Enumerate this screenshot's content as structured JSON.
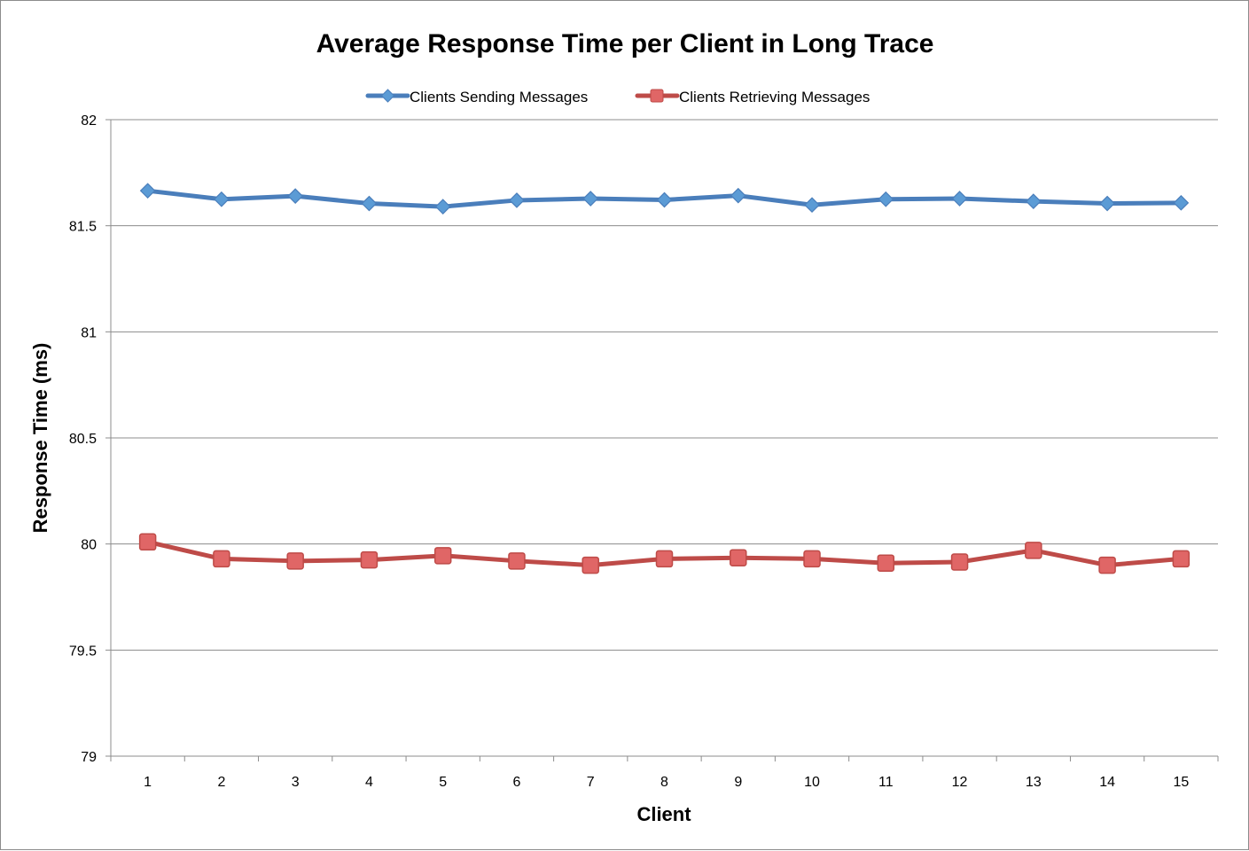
{
  "chart_data": {
    "type": "line",
    "title": "Average Response Time per Client in Long Trace",
    "xlabel": "Client",
    "ylabel": "Response Time (ms)",
    "categories": [
      "1",
      "2",
      "3",
      "4",
      "5",
      "6",
      "7",
      "8",
      "9",
      "10",
      "11",
      "12",
      "13",
      "14",
      "15"
    ],
    "ylim": [
      79,
      82
    ],
    "yticks": [
      "79",
      "79.5",
      "80",
      "80.5",
      "81",
      "81.5",
      "82"
    ],
    "grid": true,
    "legend_position": "top",
    "series": [
      {
        "name": "Clients Sending Messages",
        "color": "#4a7ebb",
        "marker_color": "#5b9bd5",
        "marker": "diamond",
        "values": [
          81.665,
          81.625,
          81.64,
          81.605,
          81.59,
          81.62,
          81.628,
          81.622,
          81.642,
          81.598,
          81.625,
          81.628,
          81.615,
          81.605,
          81.608
        ]
      },
      {
        "name": "Clients Retrieving Messages",
        "color": "#be4b48",
        "marker_color": "#e06666",
        "marker": "square",
        "values": [
          80.01,
          79.93,
          79.92,
          79.925,
          79.945,
          79.92,
          79.9,
          79.93,
          79.935,
          79.93,
          79.91,
          79.915,
          79.97,
          79.9,
          79.93
        ]
      }
    ]
  }
}
